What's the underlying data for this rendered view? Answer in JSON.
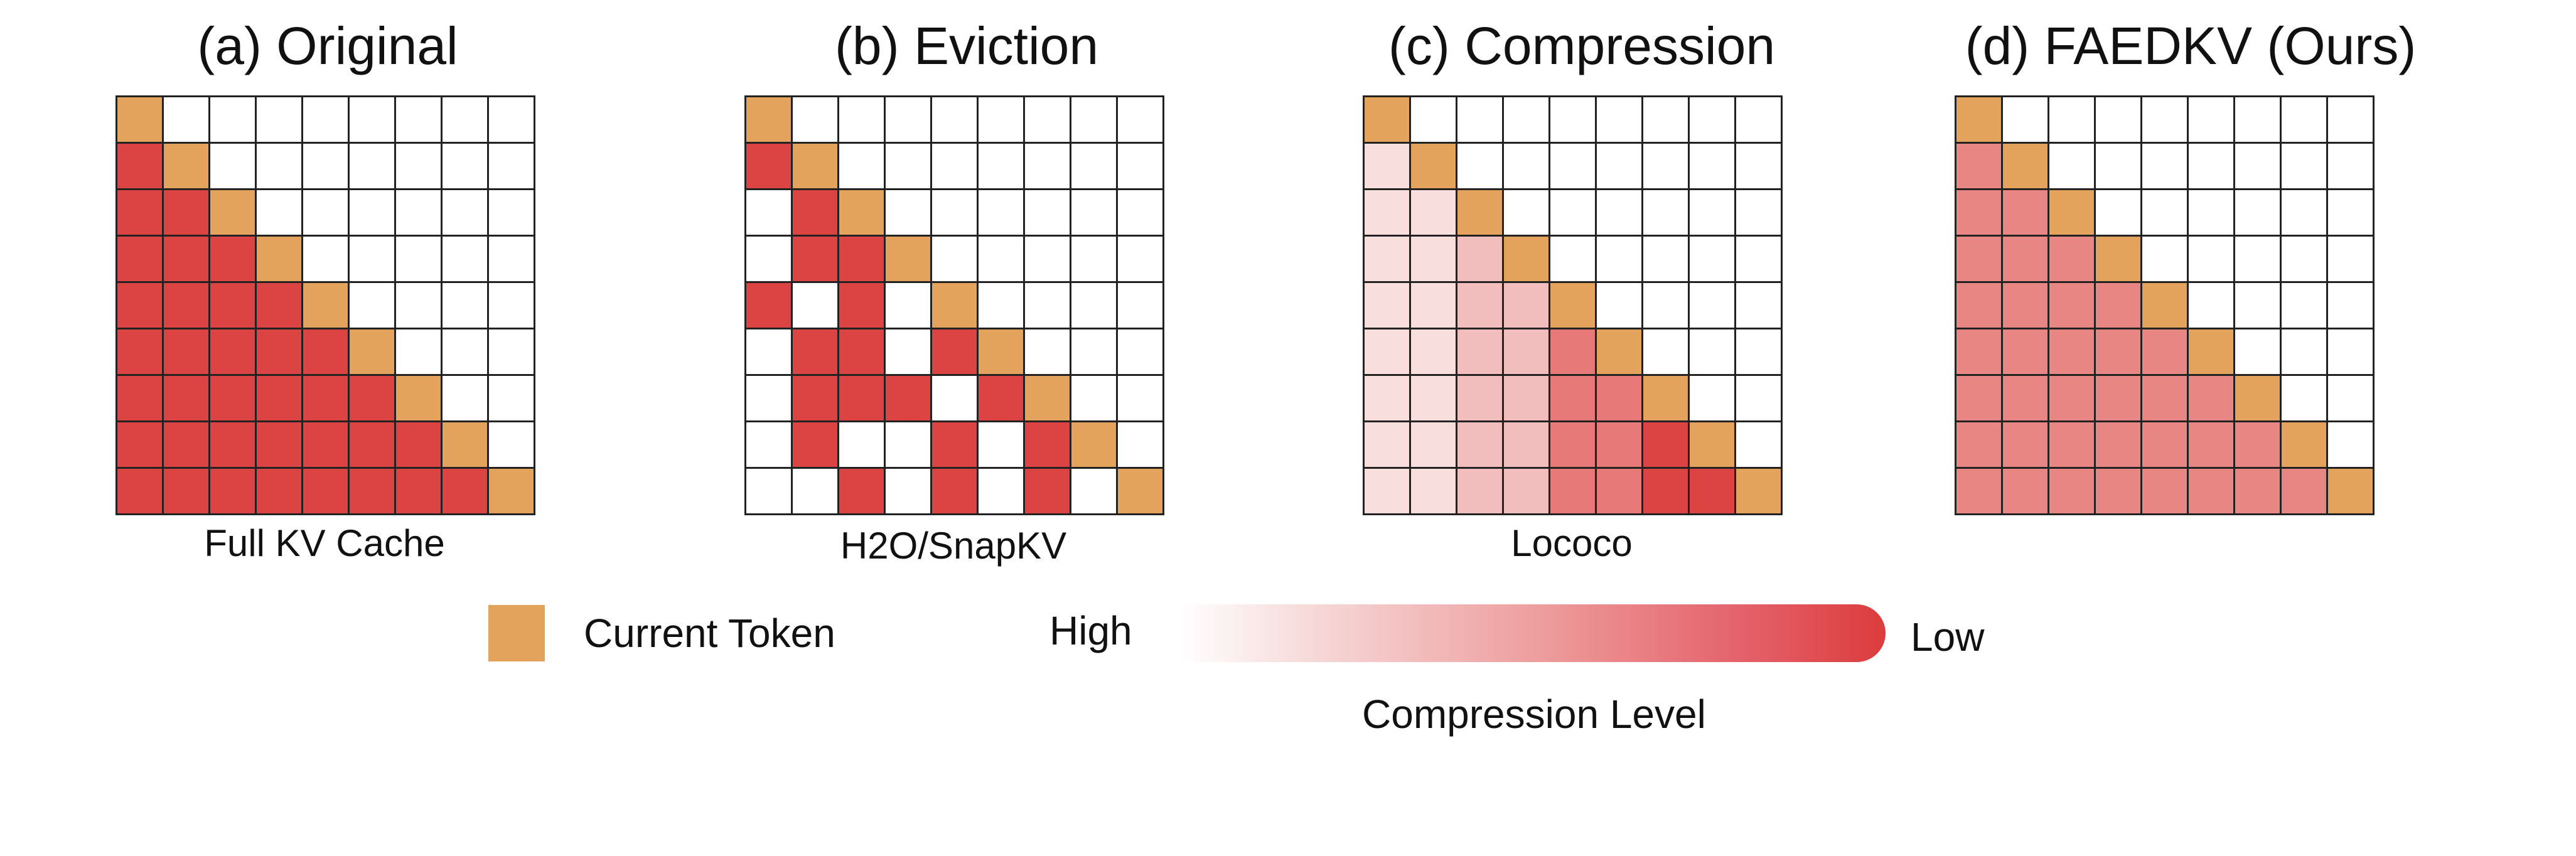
{
  "panels": [
    {
      "title": "(a) Original",
      "caption": "Full KV Cache",
      "cells": [
        "O........",
        "RO.......",
        "RRO......",
        "RRRO.....",
        "RRRRO....",
        "RRRRRO...",
        "RRRRRRO..",
        "RRRRRRRO.",
        "RRRRRRRRO"
      ]
    },
    {
      "title": "(b) Eviction",
      "caption": "H2O/SnapKV",
      "cells": [
        "O........",
        "RO.......",
        ".RO......",
        ".RRO.....",
        "R.R.O....",
        ".RR.RO...",
        ".RRR.RO..",
        ".R..R.RO.",
        "..R.R.R.O"
      ]
    },
    {
      "title": "(c) Compression",
      "caption": "Lococo",
      "cells": [
        "O........",
        "1O.......",
        "11O......",
        "112O.....",
        "1122O....",
        "11223O...",
        "112233O..",
        "1122334O.",
        "11223344O"
      ]
    },
    {
      "title": "(d) FAEDKV (Ours)",
      "caption": "",
      "cells": [
        "O........",
        "MO.......",
        "MMO......",
        "MMMO.....",
        "MMMMO....",
        "MMMMMO...",
        "MMMMMMO..",
        "MMMMMMMO.",
        "MMMMMMMMO"
      ]
    }
  ],
  "cell_colors": {
    "O": "#E4A35C",
    "R": "#DC4444",
    ".": "#FFFFFF",
    "1": "#F9DEDE",
    "2": "#F2BDBD",
    "3": "#E77A78",
    "4": "#DC4444",
    "M": "#E88684"
  },
  "legend": {
    "current_token": "Current Token",
    "current_token_color": "#E4A35C",
    "high_label": "High",
    "low_label": "Low",
    "scale_title": "Compression Level"
  }
}
